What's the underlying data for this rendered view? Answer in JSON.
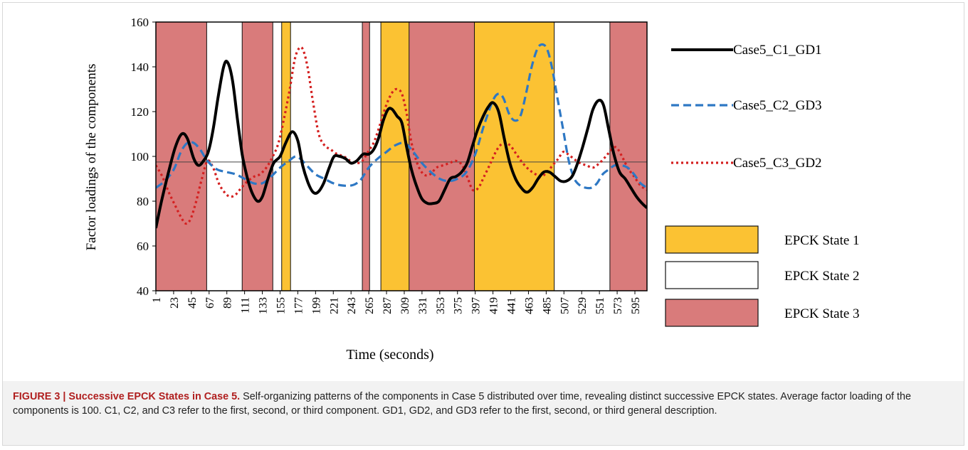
{
  "chart_data": {
    "type": "line",
    "ylabel": "Factor loadings  of the components",
    "xlabel": "Time  (seconds)",
    "ylim": [
      40,
      160
    ],
    "y_ticks": [
      40,
      60,
      80,
      100,
      120,
      140,
      160
    ],
    "xlim": [
      1,
      610
    ],
    "x_ticks": [
      1,
      23,
      45,
      67,
      89,
      111,
      133,
      155,
      177,
      199,
      221,
      243,
      265,
      287,
      309,
      331,
      353,
      375,
      397,
      419,
      441,
      463,
      485,
      507,
      529,
      551,
      573,
      595
    ],
    "reference_line": 97.5,
    "grid": false,
    "legend_position": "right",
    "series": [
      {
        "name": "Case5_C1_GD1",
        "color": "#000000",
        "dash": "solid",
        "points": [
          [
            1,
            68
          ],
          [
            8,
            80
          ],
          [
            16,
            92
          ],
          [
            25,
            104
          ],
          [
            33,
            110
          ],
          [
            40,
            108
          ],
          [
            48,
            99
          ],
          [
            54,
            96
          ],
          [
            60,
            98
          ],
          [
            66,
            102
          ],
          [
            72,
            112
          ],
          [
            78,
            126
          ],
          [
            85,
            140
          ],
          [
            90,
            142
          ],
          [
            96,
            134
          ],
          [
            102,
            117
          ],
          [
            108,
            101
          ],
          [
            114,
            91
          ],
          [
            120,
            84
          ],
          [
            127,
            80
          ],
          [
            133,
            82
          ],
          [
            140,
            90
          ],
          [
            147,
            97
          ],
          [
            155,
            100
          ],
          [
            162,
            106
          ],
          [
            170,
            111
          ],
          [
            177,
            107
          ],
          [
            183,
            96
          ],
          [
            190,
            88
          ],
          [
            196,
            84
          ],
          [
            202,
            84
          ],
          [
            209,
            88
          ],
          [
            216,
            95
          ],
          [
            222,
            100
          ],
          [
            229,
            100
          ],
          [
            236,
            99
          ],
          [
            243,
            97
          ],
          [
            250,
            98
          ],
          [
            258,
            101
          ],
          [
            265,
            101
          ],
          [
            271,
            103
          ],
          [
            277,
            108
          ],
          [
            283,
            116
          ],
          [
            289,
            121
          ],
          [
            294,
            121
          ],
          [
            300,
            118
          ],
          [
            306,
            115
          ],
          [
            312,
            104
          ],
          [
            318,
            94
          ],
          [
            325,
            86
          ],
          [
            331,
            81
          ],
          [
            338,
            79
          ],
          [
            345,
            79
          ],
          [
            352,
            80
          ],
          [
            359,
            85
          ],
          [
            366,
            90
          ],
          [
            373,
            91
          ],
          [
            380,
            93
          ],
          [
            387,
            97
          ],
          [
            393,
            104
          ],
          [
            400,
            112
          ],
          [
            407,
            118
          ],
          [
            413,
            122
          ],
          [
            419,
            124
          ],
          [
            426,
            120
          ],
          [
            433,
            108
          ],
          [
            440,
            97
          ],
          [
            447,
            90
          ],
          [
            454,
            86
          ],
          [
            461,
            84
          ],
          [
            468,
            86
          ],
          [
            475,
            90
          ],
          [
            482,
            93
          ],
          [
            489,
            93
          ],
          [
            496,
            91
          ],
          [
            503,
            89
          ],
          [
            510,
            89
          ],
          [
            517,
            91
          ],
          [
            523,
            96
          ],
          [
            530,
            104
          ],
          [
            537,
            113
          ],
          [
            543,
            121
          ],
          [
            550,
            125
          ],
          [
            556,
            123
          ],
          [
            562,
            113
          ],
          [
            569,
            101
          ],
          [
            576,
            93
          ],
          [
            583,
            90
          ],
          [
            590,
            86
          ],
          [
            597,
            82
          ],
          [
            604,
            79
          ],
          [
            610,
            77
          ]
        ]
      },
      {
        "name": "Case5_C2_GD3",
        "color": "#2e78c4",
        "dash": "dashed",
        "points": [
          [
            1,
            86
          ],
          [
            12,
            89
          ],
          [
            23,
            94
          ],
          [
            32,
            102
          ],
          [
            40,
            106
          ],
          [
            48,
            106
          ],
          [
            56,
            103
          ],
          [
            63,
            99
          ],
          [
            70,
            96
          ],
          [
            78,
            94
          ],
          [
            89,
            93
          ],
          [
            100,
            92
          ],
          [
            111,
            90
          ],
          [
            122,
            88
          ],
          [
            133,
            88
          ],
          [
            144,
            91
          ],
          [
            155,
            95
          ],
          [
            166,
            98
          ],
          [
            174,
            100
          ],
          [
            180,
            99
          ],
          [
            188,
            96
          ],
          [
            199,
            92
          ],
          [
            210,
            90
          ],
          [
            221,
            88
          ],
          [
            232,
            87
          ],
          [
            243,
            87
          ],
          [
            250,
            88
          ],
          [
            256,
            90
          ],
          [
            265,
            95
          ],
          [
            276,
            99
          ],
          [
            287,
            102
          ],
          [
            298,
            105
          ],
          [
            309,
            106
          ],
          [
            318,
            103
          ],
          [
            331,
            97
          ],
          [
            342,
            93
          ],
          [
            353,
            90
          ],
          [
            364,
            89
          ],
          [
            375,
            90
          ],
          [
            386,
            93
          ],
          [
            397,
            101
          ],
          [
            408,
            114
          ],
          [
            419,
            125
          ],
          [
            426,
            128
          ],
          [
            432,
            126
          ],
          [
            439,
            119
          ],
          [
            446,
            116
          ],
          [
            453,
            118
          ],
          [
            460,
            128
          ],
          [
            467,
            140
          ],
          [
            474,
            148
          ],
          [
            480,
            150
          ],
          [
            486,
            148
          ],
          [
            492,
            140
          ],
          [
            499,
            126
          ],
          [
            506,
            112
          ],
          [
            513,
            98
          ],
          [
            520,
            90
          ],
          [
            527,
            87
          ],
          [
            534,
            86
          ],
          [
            541,
            86
          ],
          [
            548,
            88
          ],
          [
            555,
            92
          ],
          [
            562,
            94
          ],
          [
            570,
            96
          ],
          [
            578,
            96
          ],
          [
            586,
            95
          ],
          [
            594,
            92
          ],
          [
            602,
            88
          ],
          [
            610,
            86
          ]
        ]
      },
      {
        "name": "Case5_C3_GD2",
        "color": "#d42020",
        "dash": "dotted",
        "points": [
          [
            1,
            96
          ],
          [
            9,
            91
          ],
          [
            17,
            84
          ],
          [
            25,
            78
          ],
          [
            32,
            73
          ],
          [
            38,
            70
          ],
          [
            44,
            72
          ],
          [
            51,
            80
          ],
          [
            58,
            90
          ],
          [
            65,
            98
          ],
          [
            72,
            95
          ],
          [
            79,
            88
          ],
          [
            86,
            84
          ],
          [
            93,
            82
          ],
          [
            100,
            83
          ],
          [
            107,
            86
          ],
          [
            115,
            89
          ],
          [
            123,
            91
          ],
          [
            130,
            92
          ],
          [
            138,
            95
          ],
          [
            146,
            100
          ],
          [
            153,
            106
          ],
          [
            160,
            117
          ],
          [
            167,
            130
          ],
          [
            173,
            143
          ],
          [
            178,
            148
          ],
          [
            183,
            148
          ],
          [
            189,
            140
          ],
          [
            196,
            124
          ],
          [
            203,
            110
          ],
          [
            210,
            105
          ],
          [
            218,
            103
          ],
          [
            226,
            101
          ],
          [
            234,
            100
          ],
          [
            242,
            98
          ],
          [
            250,
            97
          ],
          [
            257,
            98
          ],
          [
            264,
            102
          ],
          [
            271,
            106
          ],
          [
            277,
            112
          ],
          [
            283,
            119
          ],
          [
            289,
            125
          ],
          [
            295,
            129
          ],
          [
            300,
            130
          ],
          [
            306,
            128
          ],
          [
            312,
            119
          ],
          [
            318,
            106
          ],
          [
            325,
            97
          ],
          [
            333,
            92
          ],
          [
            341,
            92
          ],
          [
            349,
            95
          ],
          [
            357,
            96
          ],
          [
            365,
            97
          ],
          [
            373,
            98
          ],
          [
            381,
            96
          ],
          [
            388,
            90
          ],
          [
            394,
            85
          ],
          [
            401,
            86
          ],
          [
            408,
            91
          ],
          [
            416,
            97
          ],
          [
            424,
            103
          ],
          [
            432,
            106
          ],
          [
            440,
            105
          ],
          [
            448,
            101
          ],
          [
            456,
            97
          ],
          [
            464,
            94
          ],
          [
            472,
            92
          ],
          [
            479,
            91
          ],
          [
            486,
            93
          ],
          [
            493,
            96
          ],
          [
            500,
            99
          ],
          [
            506,
            102
          ],
          [
            512,
            101
          ],
          [
            519,
            99
          ],
          [
            527,
            97
          ],
          [
            535,
            96
          ],
          [
            543,
            95
          ],
          [
            551,
            97
          ],
          [
            559,
            100
          ],
          [
            566,
            103
          ],
          [
            572,
            104
          ],
          [
            579,
            100
          ],
          [
            586,
            95
          ],
          [
            594,
            91
          ],
          [
            602,
            87
          ],
          [
            610,
            85
          ]
        ]
      }
    ],
    "state_bands": [
      {
        "state": 3,
        "x_range": [
          1,
          64
        ]
      },
      {
        "state": 2,
        "x_range": [
          64,
          108
        ]
      },
      {
        "state": 3,
        "x_range": [
          108,
          146
        ]
      },
      {
        "state": 2,
        "x_range": [
          146,
          157
        ]
      },
      {
        "state": 1,
        "x_range": [
          157,
          168
        ]
      },
      {
        "state": 2,
        "x_range": [
          168,
          257
        ]
      },
      {
        "state": 3,
        "x_range": [
          257,
          266
        ]
      },
      {
        "state": 2,
        "x_range": [
          266,
          280
        ]
      },
      {
        "state": 1,
        "x_range": [
          280,
          315
        ]
      },
      {
        "state": 3,
        "x_range": [
          315,
          396
        ]
      },
      {
        "state": 1,
        "x_range": [
          396,
          495
        ]
      },
      {
        "state": 2,
        "x_range": [
          495,
          564
        ]
      },
      {
        "state": 3,
        "x_range": [
          564,
          610
        ]
      }
    ],
    "state_colors": {
      "1": "#fbc233",
      "2": "#ffffff",
      "3": "#d97b7b"
    },
    "state_legend": [
      {
        "state": 1,
        "label": "EPCK State 1"
      },
      {
        "state": 2,
        "label": "EPCK State 2"
      },
      {
        "state": 3,
        "label": "EPCK State 3"
      }
    ]
  },
  "caption": {
    "label": "FIGURE 3 | Successive EPCK States in Case 5.",
    "text": "Self-organizing patterns of the components in Case 5 distributed over time, revealing distinct successive EPCK states. Average factor loading of the components is 100. C1, C2, and C3 refer to the first, second, or third component. GD1, GD2, and GD3 refer to the first, second, or third general description."
  }
}
